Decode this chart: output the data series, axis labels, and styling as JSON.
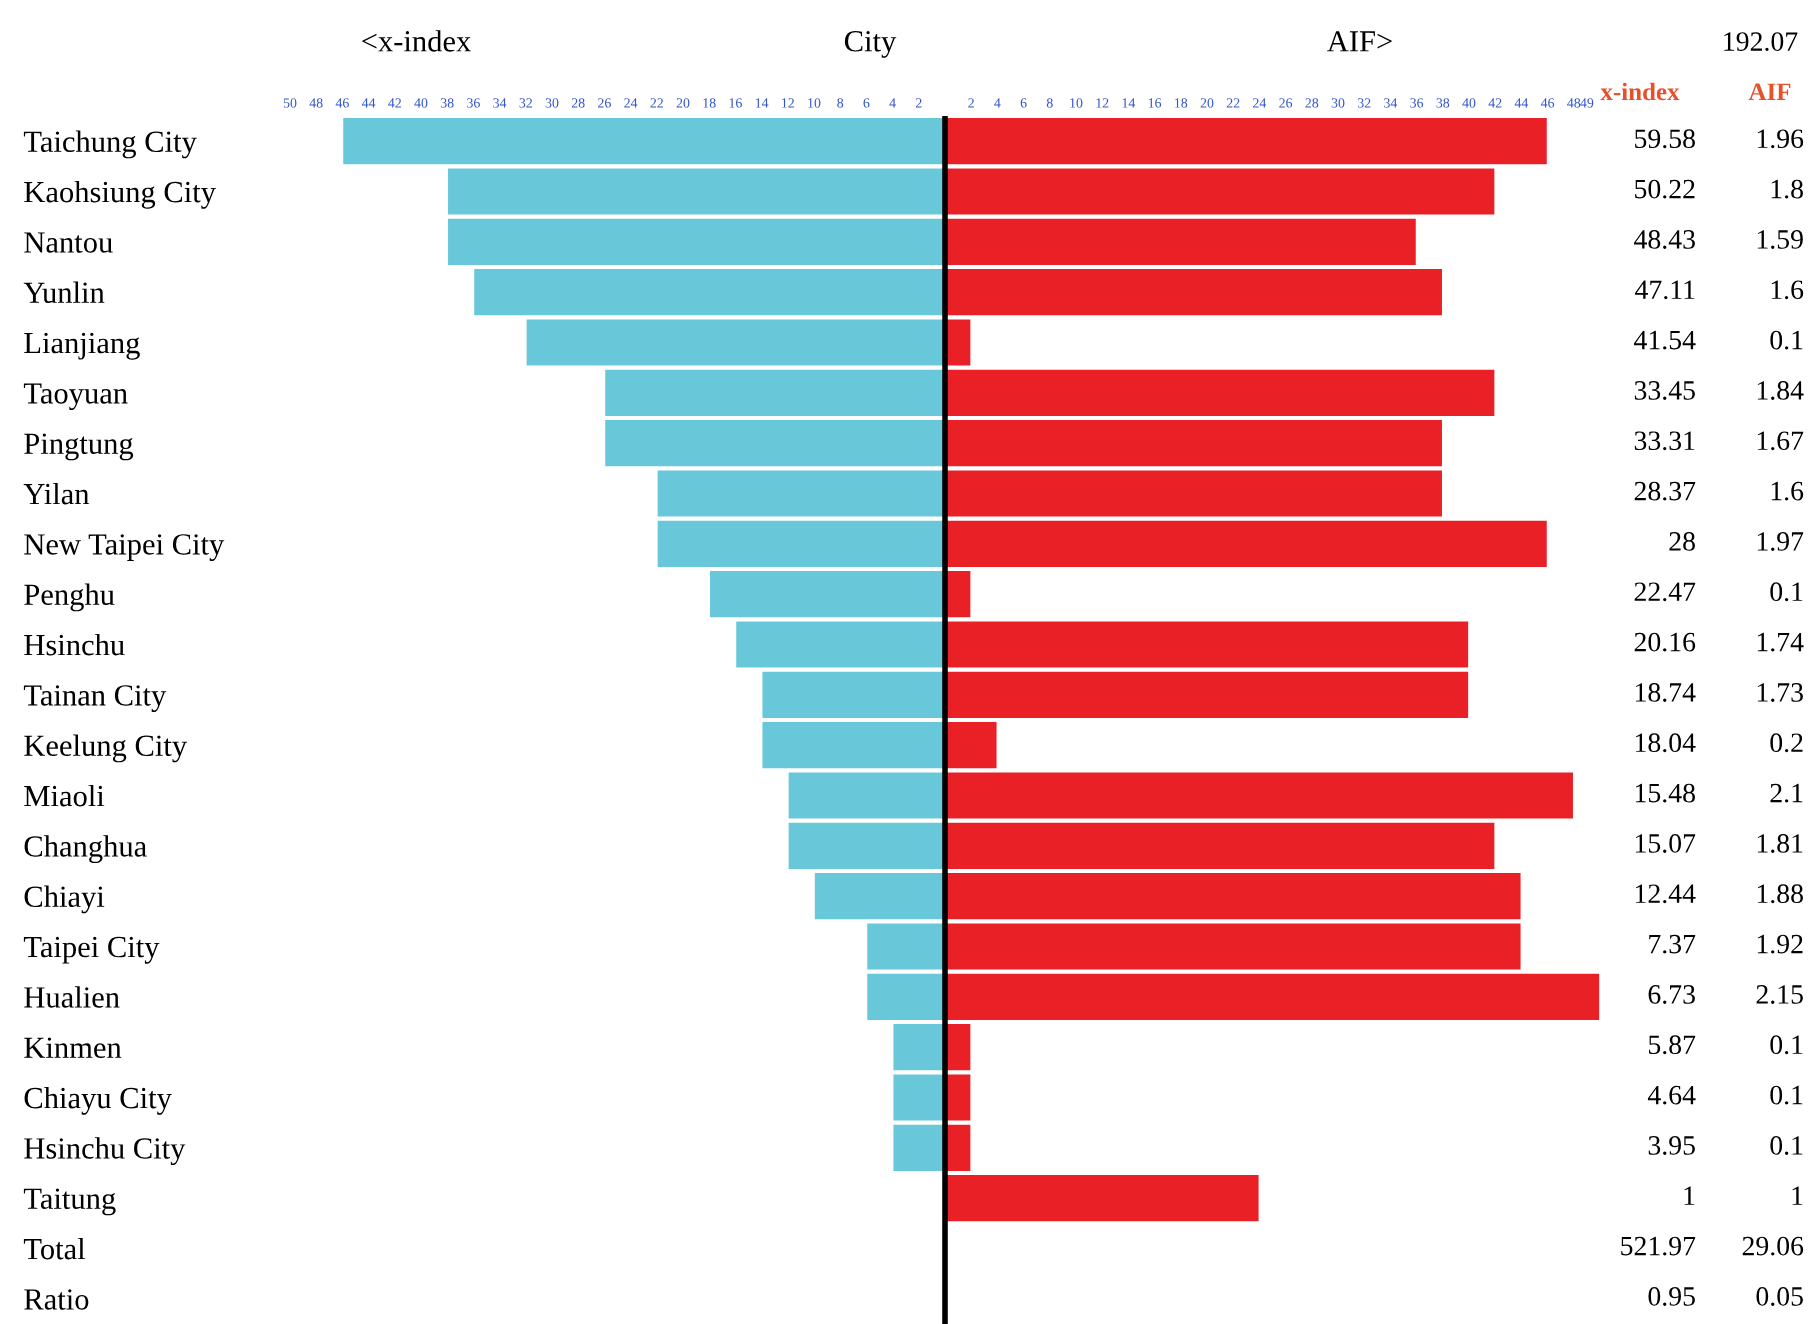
{
  "chart_data": {
    "type": "bar",
    "orientation": "horizontal",
    "stacked": true,
    "categories": [
      "Taichung City",
      "Kaohsiung City",
      "Nantou",
      "Yunlin",
      "Lianjiang",
      "Taoyuan",
      "Pingtung",
      "Yilan",
      "New Taipei City",
      "Penghu",
      "Hsinchu",
      "Tainan City",
      "Keelung City",
      "Miaoli",
      "Changhua",
      "Chiayi",
      "Taipei City",
      "Hualien",
      "Kinmen",
      "Chiayu City",
      "Hsinchu City",
      "Taitung",
      "Total",
      "Ratio"
    ],
    "series": [
      {
        "color": "#68c8da",
        "values": [
          -46,
          -38,
          -38,
          -36,
          -32,
          -26,
          -26,
          -22,
          -22,
          -18,
          -16,
          -14,
          -14,
          -12,
          -12,
          -10,
          -6,
          -6,
          -4,
          -4,
          -4,
          0,
          null,
          null
        ]
      },
      {
        "color": "#e92025",
        "values": [
          46,
          42,
          36,
          38,
          2,
          42,
          38,
          38,
          46,
          2,
          40,
          40,
          4,
          48,
          42,
          44,
          44,
          50,
          2,
          2,
          2,
          24,
          null,
          null
        ]
      }
    ],
    "xlim": [
      -50,
      50
    ],
    "xticks": [
      {
        "value": -50,
        "label": "50"
      },
      {
        "value": -48,
        "label": "48"
      },
      {
        "value": -46,
        "label": "46"
      },
      {
        "value": -44,
        "label": "44"
      },
      {
        "value": -42,
        "label": "42"
      },
      {
        "value": -40,
        "label": "40"
      },
      {
        "value": -38,
        "label": "38"
      },
      {
        "value": -36,
        "label": "36"
      },
      {
        "value": -34,
        "label": "34"
      },
      {
        "value": -32,
        "label": "32"
      },
      {
        "value": -30,
        "label": "30"
      },
      {
        "value": -28,
        "label": "28"
      },
      {
        "value": -26,
        "label": "26"
      },
      {
        "value": -24,
        "label": "24"
      },
      {
        "value": -22,
        "label": "22"
      },
      {
        "value": -20,
        "label": "20"
      },
      {
        "value": -18,
        "label": "18"
      },
      {
        "value": -16,
        "label": "16"
      },
      {
        "value": -14,
        "label": "14"
      },
      {
        "value": -12,
        "label": "12"
      },
      {
        "value": -10,
        "label": "10"
      },
      {
        "value": -8,
        "label": "8"
      },
      {
        "value": -6,
        "label": "6"
      },
      {
        "value": -4,
        "label": "4"
      },
      {
        "value": -2,
        "label": "2"
      },
      2,
      4,
      6,
      8,
      10,
      12,
      14,
      16,
      18,
      20,
      22,
      24,
      26,
      28,
      30,
      32,
      34,
      36,
      38,
      40,
      42,
      44,
      46,
      48,
      49
    ],
    "ref_lines": [
      {
        "axis": "x",
        "value": 0,
        "color": "#000000"
      }
    ],
    "annotations": [
      "<x-index",
      "City",
      "AIF>",
      "192.07",
      "x-index",
      "AIF",
      "59.58",
      "1.96",
      "50.22",
      "1.8",
      "48.43",
      "1.59",
      "47.11",
      "1.6",
      "41.54",
      "0.1",
      "33.45",
      "1.84",
      "33.31",
      "1.67",
      "28.37",
      "1.6",
      "28",
      "1.97",
      "22.47",
      "0.1",
      "20.16",
      "1.74",
      "18.74",
      "1.73",
      "18.04",
      "0.2",
      "15.48",
      "2.1",
      "15.07",
      "1.81",
      "12.44",
      "1.88",
      "7.37",
      "1.92",
      "6.73",
      "2.15",
      "5.87",
      "0.1",
      "4.64",
      "0.1",
      "3.95",
      "0.1",
      "1",
      "1",
      "521.97",
      "29.06",
      "0.95",
      "0.05"
    ],
    "grid": false,
    "legend": false
  }
}
